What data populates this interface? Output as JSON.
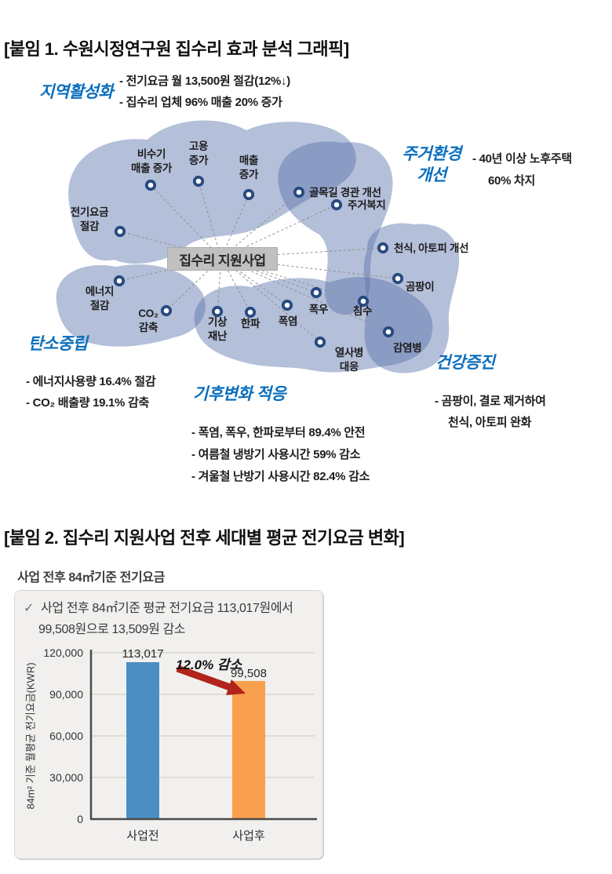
{
  "section1": {
    "title": "[붙임 1. 수원시정연구원 집수리 효과 분석 그래픽]"
  },
  "diagram": {
    "center_label": "집수리 지원사업",
    "heading_color": "#0a6ebd",
    "blob_color": "#5870ab",
    "node_ring_color": "#274a80",
    "clusters": [
      {
        "heading": "지역활성화",
        "bullets": [
          "- 전기요금 월 13,500원 절감(12%↓)",
          "- 집수리 업체 96% 매출 20% 증가"
        ]
      },
      {
        "heading": "주거환경\n개선",
        "bullets": [
          "- 40년 이상 노후주택",
          "60% 차지"
        ]
      },
      {
        "heading": "탄소중립",
        "bullets": [
          "- 에너지사용량 16.4% 절감",
          "- CO₂ 배출량 19.1% 감축"
        ]
      },
      {
        "heading": "기후변화 적응",
        "bullets": [
          "- 폭염, 폭우, 한파로부터 89.4% 안전",
          "- 여름철 냉방기 사용시간 59% 감소",
          "- 겨울철 난방기 사용시간 82.4% 감소"
        ]
      },
      {
        "heading": "건강증진",
        "bullets": [
          "- 곰팡이, 결로 제거하여",
          "천식, 아토피 완화"
        ]
      }
    ],
    "nodes": [
      {
        "label": "비수기\n매출 증가"
      },
      {
        "label": "고용\n증가"
      },
      {
        "label": "매출\n증가"
      },
      {
        "label": "전기요금\n절감"
      },
      {
        "label": "골목길 경관 개선"
      },
      {
        "label": "주거복지"
      },
      {
        "label": "천식, 아토피 개선"
      },
      {
        "label": "곰팡이"
      },
      {
        "label": "에너지\n절감"
      },
      {
        "label": "CO₂\n감축"
      },
      {
        "label": "기상\n재난"
      },
      {
        "label": "한파"
      },
      {
        "label": "폭염"
      },
      {
        "label": "폭우"
      },
      {
        "label": "침수"
      },
      {
        "label": "열사병\n대응"
      },
      {
        "label": "감염병"
      }
    ]
  },
  "section2": {
    "title": "[붙임 2. 집수리 지원사업 전후 세대별 평균 전기요금 변화]",
    "subtitle": "사업 전후 84㎡기준 전기요금"
  },
  "chart_data": {
    "type": "bar",
    "title": "사업 전후 84㎡기준 전기요금",
    "categories": [
      "사업전",
      "사업후"
    ],
    "values": [
      113017,
      99508
    ],
    "value_labels": [
      "113,017",
      "99,508"
    ],
    "bar_colors": [
      "#4b8fc2",
      "#f9a04e"
    ],
    "ylabel": "84m² 기준 월평균 전기요금(KWR)",
    "ylim": [
      0,
      120000
    ],
    "ytick_labels": [
      "0",
      "30,000",
      "60,000",
      "90,000",
      "120,000"
    ],
    "grid": true,
    "legend": "none",
    "annotation": "12.0% 감소",
    "arrow_color": "#b2231c",
    "check_icon": "✓",
    "note_line1": "사업 전후 84㎡기준 평균 전기요금 113,017원에서",
    "note_line2": "99,508원으로 13,509원 감소"
  }
}
